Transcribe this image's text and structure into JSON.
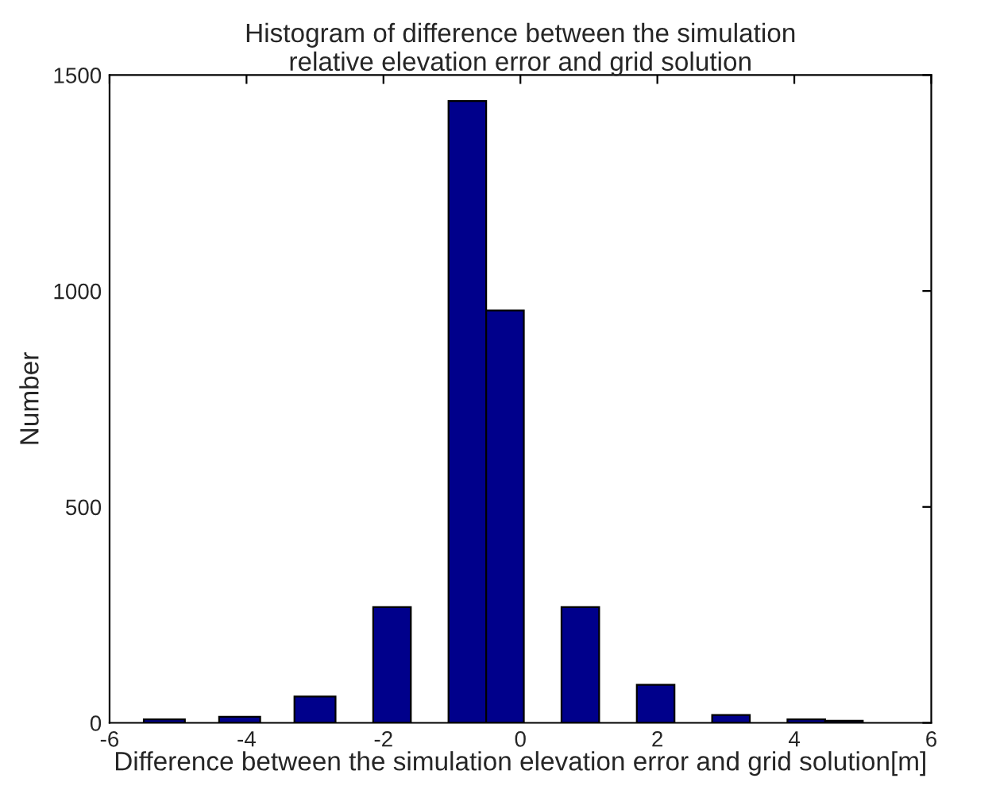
{
  "chart_data": {
    "type": "histogram",
    "title": "Histogram of difference between the simulation\nrelative elevation error and grid solution",
    "xlabel": "Difference between the simulation elevation error and grid solution[m]",
    "ylabel": "Number",
    "bins": [
      -5.5,
      -4.9,
      -4.4,
      -3.8,
      -3.3,
      -2.7,
      -2.15,
      -1.6,
      -1.05,
      -0.5,
      0.05,
      0.6,
      1.15,
      1.7,
      2.25,
      2.8,
      3.35,
      3.9,
      4.45,
      5.0
    ],
    "values": [
      8,
      0,
      14,
      0,
      61,
      0,
      268,
      0,
      1440,
      955,
      0,
      268,
      0,
      88,
      0,
      18,
      0,
      8,
      5
    ],
    "color": "#00008b",
    "xlim": [
      -6,
      6
    ],
    "xticks": [
      -6,
      -4,
      -2,
      0,
      2,
      4,
      6
    ],
    "ylim": [
      0,
      1500
    ],
    "yticks": [
      0,
      500,
      1000,
      1500
    ],
    "grid": false
  }
}
